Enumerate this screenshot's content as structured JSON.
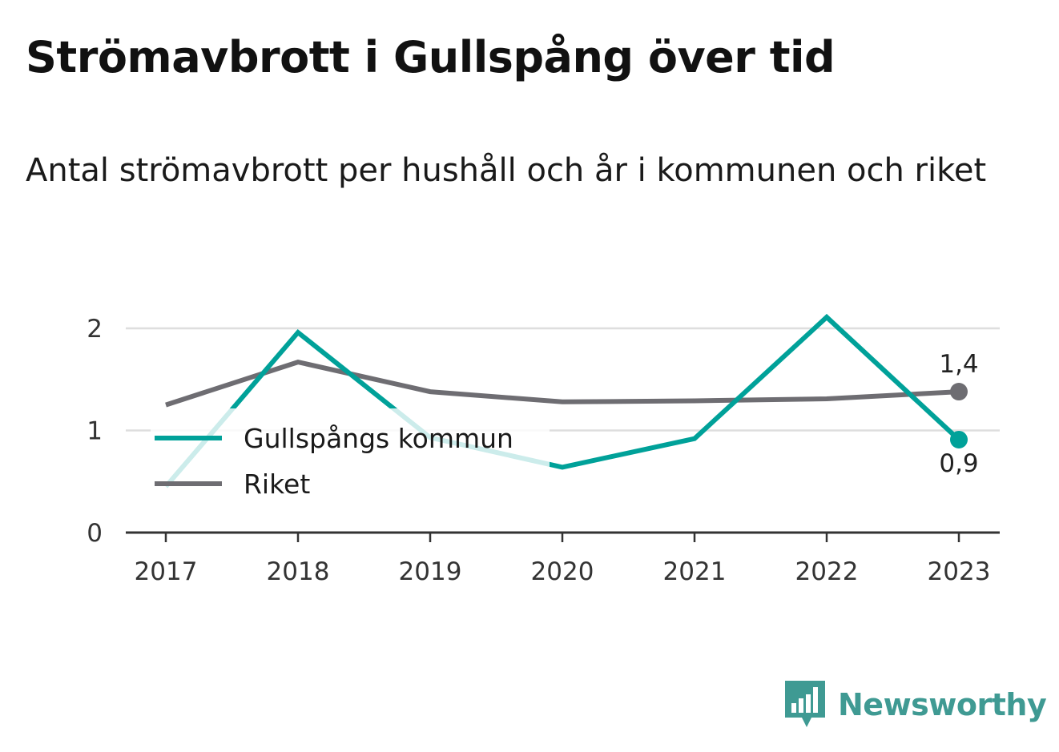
{
  "title": "Strömavbrott i Gullspång över tid",
  "subtitle": "Antal strömavbrott per hushåll och år i kommunen och riket",
  "brand": {
    "name": "Newsworthy",
    "icon": "newsworthy-chart-icon",
    "color": "#3f9a93"
  },
  "chart_data": {
    "type": "line",
    "title": "Strömavbrott i Gullspång över tid",
    "subtitle": "Antal strömavbrott per hushåll och år i kommunen och riket",
    "xlabel": "",
    "ylabel": "",
    "x": [
      "2017",
      "2018",
      "2019",
      "2020",
      "2021",
      "2022",
      "2023"
    ],
    "ylim": [
      0,
      2.1
    ],
    "yticks": [
      0,
      1,
      2
    ],
    "ytick_labels": [
      "0",
      "1",
      "2"
    ],
    "grid": true,
    "legend_position": "left",
    "series": [
      {
        "name": "Gullspångs kommun",
        "color": "#00a199",
        "values": [
          0.45,
          1.96,
          0.93,
          0.64,
          0.92,
          2.11,
          0.91
        ],
        "end_label": "0,9"
      },
      {
        "name": "Riket",
        "color": "#6e6d72",
        "values": [
          1.25,
          1.67,
          1.38,
          1.28,
          1.29,
          1.31,
          1.38
        ],
        "end_label": "1,4"
      }
    ]
  }
}
